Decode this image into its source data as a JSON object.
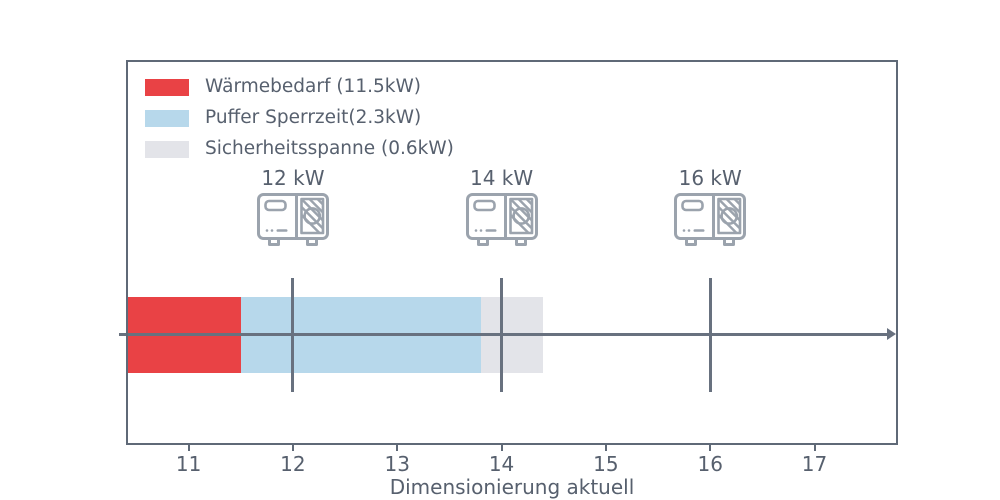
{
  "chart_data": {
    "type": "bar",
    "orientation": "horizontal",
    "stacked": true,
    "title": "",
    "xlabel": "Dimensionierung aktuell",
    "xlim": [
      10.4,
      17.8
    ],
    "xticks": [
      11,
      12,
      13,
      14,
      15,
      16,
      17
    ],
    "grid": false,
    "bar": {
      "segments": [
        {
          "name": "Wärmebedarf (11.5kW)",
          "value_kw": 11.5,
          "start": 10.4,
          "end": 11.5,
          "color": "#e94245"
        },
        {
          "name": "Puffer Sperrzeit(2.3kW)",
          "value_kw": 2.3,
          "start": 11.5,
          "end": 13.8,
          "color": "#b7d8eb"
        },
        {
          "name": "Sicherheitsspanne (0.6kW)",
          "value_kw": 0.6,
          "start": 13.8,
          "end": 14.4,
          "color": "#e3e4e9"
        }
      ]
    },
    "markers": [
      {
        "label": "12 kW",
        "x": 12,
        "icon": "heat-pump-icon"
      },
      {
        "label": "14 kW",
        "x": 14,
        "icon": "heat-pump-icon"
      },
      {
        "label": "16 kW",
        "x": 16,
        "icon": "heat-pump-icon"
      }
    ],
    "arrow": {
      "from": 10.33,
      "to": 17.78,
      "direction": "right"
    },
    "legend": {
      "position": "upper-left",
      "entries": [
        "Wärmebedarf (11.5kW)",
        "Puffer Sperrzeit(2.3kW)",
        "Sicherheitsspanne (0.6kW)"
      ]
    }
  },
  "colors": {
    "heat_demand_red": "#e94245",
    "buffer_blue": "#b7d8eb",
    "safety_gray": "#e3e4e9",
    "axis_spine": "#5f6977",
    "marker_line": "#68717f",
    "text": "#57606e",
    "icon_stroke": "#9ba3ad",
    "background": "#ffffff"
  }
}
